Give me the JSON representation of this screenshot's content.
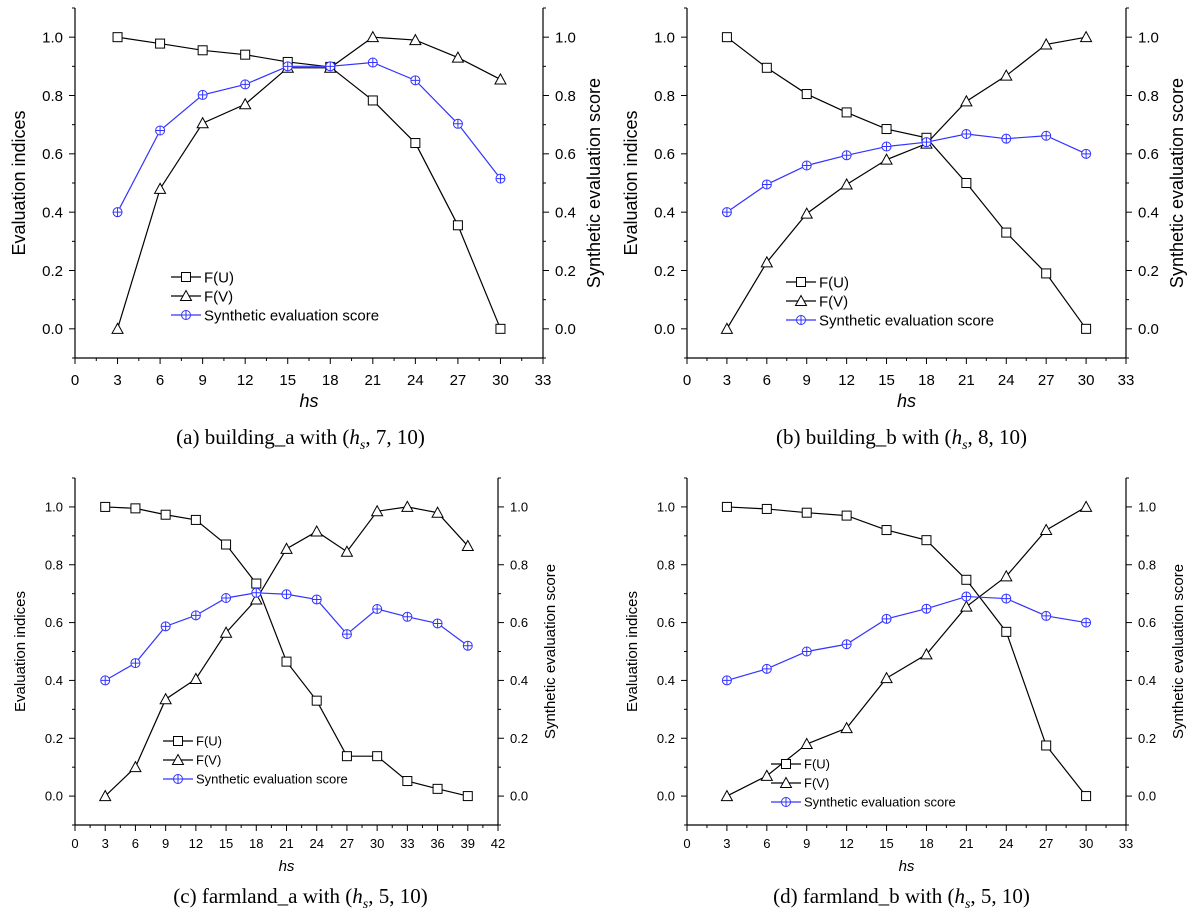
{
  "chart_data": [
    {
      "type": "line",
      "caption_prefix": "(a) building_a with (",
      "caption_var": "h",
      "caption_sub": "s",
      "caption_suffix": ", 7, 10)",
      "xlabel": "hs",
      "ylabel": "Evaluation indices",
      "y2label": "Synthetic evaluation score",
      "xlim": [
        0,
        33
      ],
      "xticks": [
        0,
        3,
        6,
        9,
        12,
        15,
        18,
        21,
        24,
        27,
        30,
        33
      ],
      "ylim": [
        -0.1,
        1.1
      ],
      "yticks": [
        "0.0",
        "0.2",
        "0.4",
        "0.6",
        "0.8",
        "1.0"
      ],
      "y2ticks": [
        "0.0",
        "0.2",
        "0.4",
        "0.6",
        "0.8",
        "1.0"
      ],
      "x": [
        3,
        6,
        9,
        12,
        15,
        18,
        21,
        24,
        27,
        30
      ],
      "series": [
        {
          "name": "F(U)",
          "marker": "square",
          "color": "#000000",
          "values": [
            1.0,
            0.978,
            0.955,
            0.94,
            0.915,
            0.898,
            0.783,
            0.637,
            0.355,
            0.0
          ]
        },
        {
          "name": "F(V)",
          "marker": "triangle",
          "color": "#000000",
          "values": [
            0.0,
            0.48,
            0.705,
            0.77,
            0.895,
            0.895,
            1.0,
            0.99,
            0.93,
            0.855
          ]
        },
        {
          "name": "Synthetic evaluation score",
          "marker": "circle-plus",
          "color": "#3333ff",
          "values": [
            0.4,
            0.68,
            0.802,
            0.838,
            0.9,
            0.9,
            0.913,
            0.852,
            0.703,
            0.515
          ]
        }
      ],
      "legend_pos": "lower-center"
    },
    {
      "type": "line",
      "caption_prefix": "(b) building_b with (",
      "caption_var": "h",
      "caption_sub": "s",
      "caption_suffix": ", 8, 10)",
      "xlabel": "hs",
      "ylabel": "Evaluation indices",
      "y2label": "Synthetic evaluation score",
      "xlim": [
        0,
        33
      ],
      "xticks": [
        0,
        3,
        6,
        9,
        12,
        15,
        18,
        21,
        24,
        27,
        30,
        33
      ],
      "ylim": [
        -0.1,
        1.1
      ],
      "yticks": [
        "0.0",
        "0.2",
        "0.4",
        "0.6",
        "0.8",
        "1.0"
      ],
      "y2ticks": [
        "0.0",
        "0.2",
        "0.4",
        "0.6",
        "0.8",
        "1.0"
      ],
      "x": [
        3,
        6,
        9,
        12,
        15,
        18,
        21,
        24,
        27,
        30
      ],
      "series": [
        {
          "name": "F(U)",
          "marker": "square",
          "color": "#000000",
          "values": [
            1.0,
            0.895,
            0.805,
            0.742,
            0.685,
            0.655,
            0.5,
            0.33,
            0.19,
            0.0
          ]
        },
        {
          "name": "F(V)",
          "marker": "triangle",
          "color": "#000000",
          "values": [
            0.0,
            0.228,
            0.395,
            0.495,
            0.58,
            0.635,
            0.78,
            0.868,
            0.975,
            1.0
          ]
        },
        {
          "name": "Synthetic evaluation score",
          "marker": "circle-plus",
          "color": "#3333ff",
          "values": [
            0.4,
            0.495,
            0.56,
            0.595,
            0.625,
            0.64,
            0.668,
            0.652,
            0.662,
            0.6
          ]
        }
      ],
      "legend_pos": "lower-center"
    },
    {
      "type": "line",
      "caption_prefix": "(c) farmland_a with (",
      "caption_var": "h",
      "caption_sub": "s",
      "caption_suffix": ", 5, 10)",
      "xlabel": "hs",
      "ylabel": "Evaluation indices",
      "y2label": "Synthetic evaluation score",
      "xlim": [
        0,
        42
      ],
      "xticks": [
        0,
        3,
        6,
        9,
        12,
        15,
        18,
        21,
        24,
        27,
        30,
        33,
        36,
        39,
        42
      ],
      "ylim": [
        -0.1,
        1.1
      ],
      "yticks": [
        "0.0",
        "0.2",
        "0.4",
        "0.6",
        "0.8",
        "1.0"
      ],
      "y2ticks": [
        "0.0",
        "0.2",
        "0.4",
        "0.6",
        "0.8",
        "1.0"
      ],
      "x": [
        3,
        6,
        9,
        12,
        15,
        18,
        21,
        24,
        27,
        30,
        33,
        36,
        39
      ],
      "series": [
        {
          "name": "F(U)",
          "marker": "square",
          "color": "#000000",
          "values": [
            1.0,
            0.995,
            0.973,
            0.955,
            0.87,
            0.735,
            0.465,
            0.33,
            0.138,
            0.138,
            0.052,
            0.025,
            0.0
          ]
        },
        {
          "name": "F(V)",
          "marker": "triangle",
          "color": "#000000",
          "values": [
            0.0,
            0.1,
            0.335,
            0.405,
            0.565,
            0.68,
            0.855,
            0.915,
            0.845,
            0.985,
            1.0,
            0.98,
            0.865
          ]
        },
        {
          "name": "Synthetic evaluation score",
          "marker": "circle-plus",
          "color": "#3333ff",
          "values": [
            0.4,
            0.46,
            0.587,
            0.625,
            0.685,
            0.703,
            0.698,
            0.68,
            0.56,
            0.647,
            0.62,
            0.597,
            0.52
          ]
        }
      ],
      "legend_pos": "lower-center"
    },
    {
      "type": "line",
      "caption_prefix": "(d) farmland_b with (",
      "caption_var": "h",
      "caption_sub": "s",
      "caption_suffix": ", 5, 10)",
      "xlabel": "hs",
      "ylabel": "Evaluation indices",
      "y2label": "Synthetic evaluation score",
      "xlim": [
        0,
        33
      ],
      "xticks": [
        0,
        3,
        6,
        9,
        12,
        15,
        18,
        21,
        24,
        27,
        30,
        33
      ],
      "ylim": [
        -0.1,
        1.1
      ],
      "yticks": [
        "0.0",
        "0.2",
        "0.4",
        "0.6",
        "0.8",
        "1.0"
      ],
      "y2ticks": [
        "0.0",
        "0.2",
        "0.4",
        "0.6",
        "0.8",
        "1.0"
      ],
      "x": [
        3,
        6,
        9,
        12,
        15,
        18,
        21,
        24,
        27,
        30
      ],
      "series": [
        {
          "name": "F(U)",
          "marker": "square",
          "color": "#000000",
          "values": [
            1.0,
            0.993,
            0.98,
            0.97,
            0.92,
            0.885,
            0.748,
            0.568,
            0.175,
            0.0
          ]
        },
        {
          "name": "F(V)",
          "marker": "triangle",
          "color": "#000000",
          "values": [
            0.0,
            0.07,
            0.18,
            0.235,
            0.408,
            0.49,
            0.655,
            0.76,
            0.92,
            1.0
          ]
        },
        {
          "name": "Synthetic evaluation score",
          "marker": "circle-plus",
          "color": "#3333ff",
          "values": [
            0.4,
            0.44,
            0.5,
            0.525,
            0.613,
            0.648,
            0.69,
            0.683,
            0.623,
            0.6
          ]
        }
      ],
      "legend_pos": "lower-center"
    }
  ]
}
